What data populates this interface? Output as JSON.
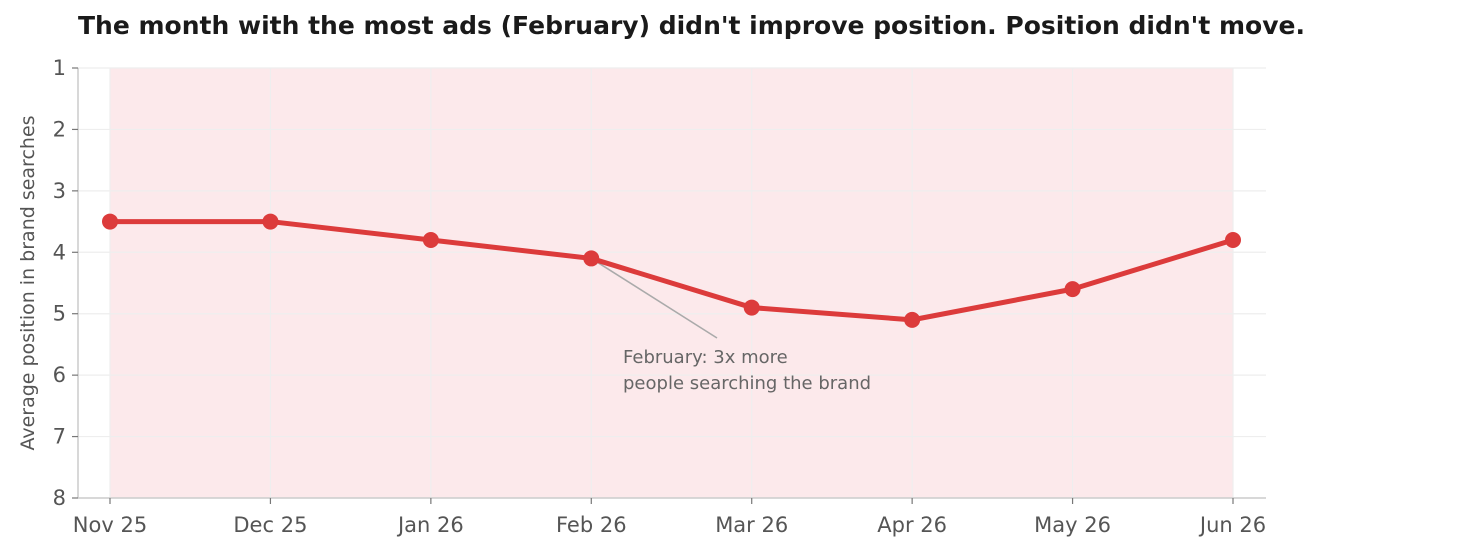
{
  "chart_data": {
    "type": "line",
    "title": "The month with the most ads (February) didn't improve position. Position didn't move.",
    "xlabel": "",
    "ylabel": "Average position in brand searches",
    "categories": [
      "Nov 25",
      "Dec 25",
      "Jan 26",
      "Feb 26",
      "Mar 26",
      "Apr 26",
      "May 26",
      "Jun 26"
    ],
    "series": [
      {
        "values": [
          3.5,
          3.5,
          3.8,
          4.1,
          4.9,
          5.1,
          4.6,
          3.8
        ]
      }
    ],
    "ylim": [
      1,
      8
    ],
    "y_inverted": true,
    "yticks": [
      "1",
      "2",
      "3",
      "4",
      "5",
      "6",
      "7",
      "8"
    ],
    "grid": true,
    "annotation": {
      "lines": [
        "February: 3x more",
        "people searching the brand"
      ],
      "category": "Feb 26"
    },
    "colors": {
      "line": "#dc3b3b",
      "band": "#fce9eb",
      "grid": "#eeeeee",
      "axis": "#cccccc",
      "annotation_arrow": "#aaaaaa"
    }
  }
}
